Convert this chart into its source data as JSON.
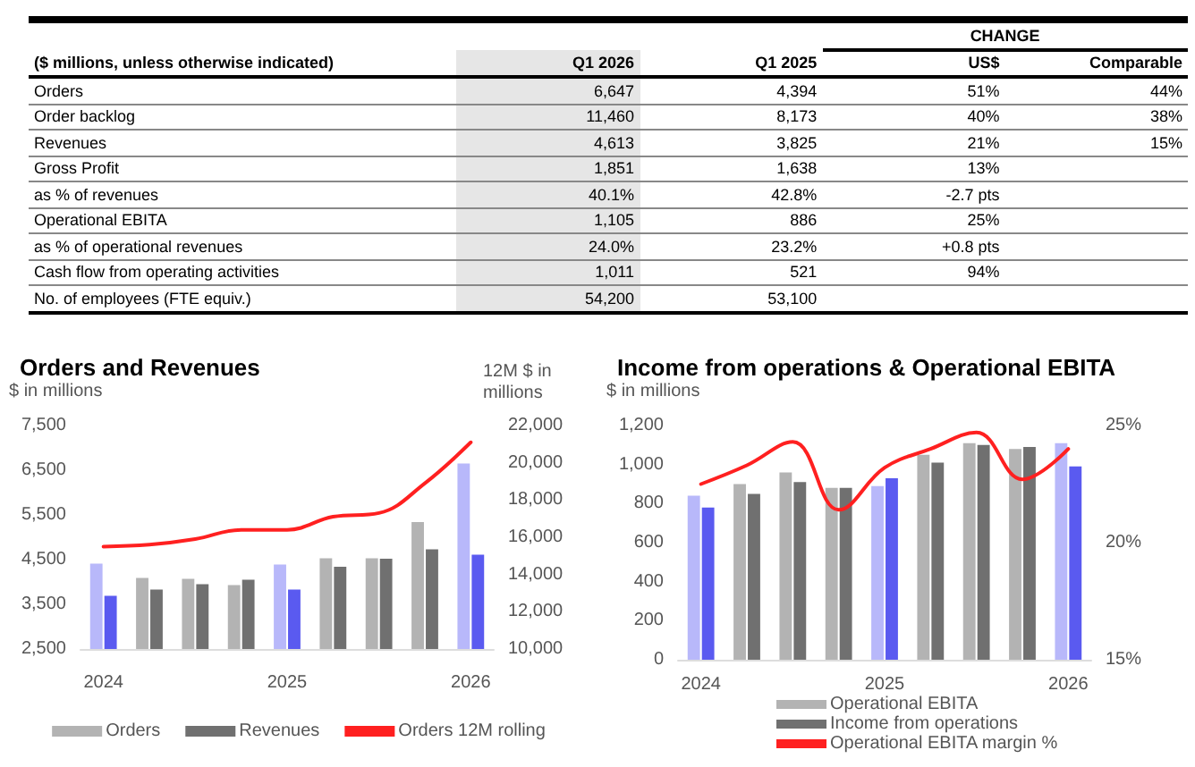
{
  "chart_data": [
    {
      "type": "other",
      "title": "($ millions, unless otherwise indicated)",
      "legend_title": "CHANGE",
      "categories": [
        "Orders",
        "Order backlog",
        "Revenues",
        "Gross Profit",
        "as % of revenues",
        "Operational EBITA",
        "as % of operational revenues",
        "Cash flow from operating activities",
        "No. of employees (FTE equiv.)"
      ],
      "series": [
        {
          "name": "Q1 2026",
          "color": "#e6e6e6",
          "values": [
            6647,
            11460,
            4613,
            1851,
            40.1,
            1105,
            24.0,
            1011,
            54200
          ],
          "value_labels": [
            "6,647",
            "11,460",
            "4,613",
            "1,851",
            "40.1%",
            "1,105",
            "24.0%",
            "1,011",
            "54,200"
          ]
        },
        {
          "name": "Q1 2025",
          "values": [
            4394,
            8173,
            3825,
            1638,
            42.8,
            886,
            23.2,
            521,
            53100
          ],
          "value_labels": [
            "4,394",
            "8,173",
            "3,825",
            "1,638",
            "42.8%",
            "886",
            "23.2%",
            "521",
            "53,100"
          ]
        },
        {
          "name": "US$",
          "values": [
            51,
            40,
            21,
            13,
            -2.7,
            25,
            0.8,
            94,
            null
          ],
          "value_labels": [
            "51%",
            "40%",
            "21%",
            "13%",
            "-2.7 pts",
            "25%",
            "+0.8 pts",
            "94%",
            null
          ]
        },
        {
          "name": "Comparable",
          "values": [
            44,
            38,
            15,
            null,
            null,
            null,
            null,
            null,
            null
          ],
          "value_labels": [
            "44%",
            "38%",
            "15%",
            null,
            null,
            null,
            null,
            null,
            null
          ]
        }
      ]
    },
    {
      "type": "bar",
      "title": "Orders and Revenues",
      "ylabel": "$ in millions",
      "y2label": "12M $ in millions",
      "categories": [
        "2024",
        null,
        null,
        null,
        "2025",
        null,
        null,
        null,
        "2026"
      ],
      "series": [
        {
          "name": "Orders",
          "color": "#b3b3b3",
          "colors": [
            "#b8b8fa",
            "#b3b3b3",
            "#b3b3b3",
            "#b3b3b3",
            "#b8b8fa",
            "#b3b3b3",
            "#b3b3b3",
            "#b3b3b3",
            "#b8b8fa"
          ],
          "values": [
            4410,
            4090,
            4070,
            3930,
            4390,
            4530,
            4530,
            5340,
            6650
          ]
        },
        {
          "name": "Revenues",
          "color": "#707070",
          "colors": [
            "#5a5af0",
            "#707070",
            "#707070",
            "#707070",
            "#5a5af0",
            "#707070",
            "#707070",
            "#707070",
            "#5a5af0"
          ],
          "values": [
            3690,
            3830,
            3950,
            4050,
            3830,
            4340,
            4520,
            4730,
            4610
          ]
        },
        {
          "name": "Orders 12M rolling",
          "type": "line",
          "axis": "y2",
          "color": "#ff2020",
          "values": [
            15500,
            15600,
            15900,
            16400,
            16400,
            17100,
            17300,
            18900,
            21100
          ]
        }
      ],
      "ylim": [
        2500,
        7500
      ],
      "yticks": [
        {
          "value": 2500,
          "label": "2,500"
        },
        {
          "value": 3500,
          "label": "3,500"
        },
        {
          "value": 4500,
          "label": "4,500"
        },
        {
          "value": 5500,
          "label": "5,500"
        },
        {
          "value": 6500,
          "label": "6,500"
        },
        {
          "value": 7500,
          "label": "7,500"
        }
      ],
      "y2lim": [
        10000,
        22000
      ],
      "y2ticks": [
        {
          "value": 10000,
          "label": "10,000"
        },
        {
          "value": 12000,
          "label": "12,000"
        },
        {
          "value": 14000,
          "label": "14,000"
        },
        {
          "value": 16000,
          "label": "16,000"
        },
        {
          "value": 18000,
          "label": "18,000"
        },
        {
          "value": 20000,
          "label": "20,000"
        },
        {
          "value": 22000,
          "label": "22,000"
        }
      ],
      "legend": "bottom",
      "marker": "none",
      "line_style": "solid"
    },
    {
      "type": "bar",
      "title": "Income from operations & Operational EBITA",
      "ylabel": "$ in millions",
      "categories": [
        "2024",
        null,
        null,
        null,
        "2025",
        null,
        null,
        null,
        "2026"
      ],
      "series": [
        {
          "name": "Operational EBITA",
          "color": "#b3b3b3",
          "colors": [
            "#b8b8fa",
            "#b3b3b3",
            "#b3b3b3",
            "#b3b3b3",
            "#b8b8fa",
            "#b3b3b3",
            "#b3b3b3",
            "#b3b3b3",
            "#b8b8fa"
          ],
          "values": [
            840,
            900,
            960,
            880,
            890,
            1050,
            1110,
            1080,
            1110
          ]
        },
        {
          "name": "Income from operations",
          "color": "#707070",
          "colors": [
            "#5a5af0",
            "#707070",
            "#707070",
            "#707070",
            "#5a5af0",
            "#707070",
            "#707070",
            "#707070",
            "#5a5af0"
          ],
          "values": [
            780,
            850,
            910,
            880,
            930,
            1010,
            1100,
            1090,
            990
          ]
        },
        {
          "name": "Operational EBITA margin %",
          "type": "line",
          "axis": "y2",
          "color": "#ff2020",
          "values": [
            22.5,
            23.3,
            24.3,
            21.4,
            23.2,
            24.0,
            24.7,
            22.7,
            24.0
          ]
        }
      ],
      "ylim": [
        0,
        1200
      ],
      "yticks": [
        0,
        200,
        400,
        600,
        800,
        {
          "value": 1000,
          "label": "1,000"
        },
        {
          "value": 1200,
          "label": "1,200"
        }
      ],
      "y2lim": [
        15,
        25
      ],
      "y2ticks": [
        {
          "value": 15,
          "label": "15%"
        },
        {
          "value": 20,
          "label": "20%"
        },
        {
          "value": 25,
          "label": "25%"
        }
      ],
      "legend": "bottom",
      "marker": "none",
      "line_style": "solid"
    }
  ]
}
